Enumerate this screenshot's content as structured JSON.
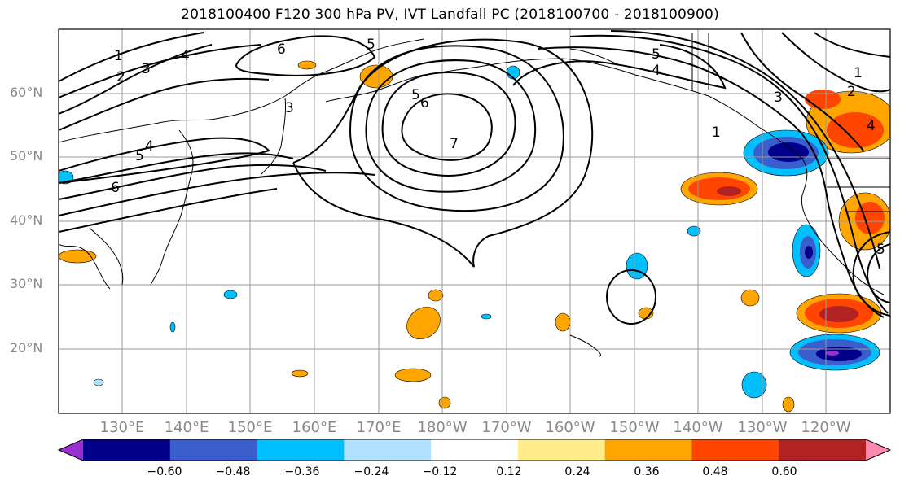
{
  "title": "2018100400 F120 300 hPa PV, IVT Landfall PC (2018100700 - 2018100900)",
  "lat_labels": [
    "60°N",
    "50°N",
    "40°N",
    "30°N",
    "20°N"
  ],
  "lon_labels": [
    "130°E",
    "140°E",
    "150°E",
    "160°E",
    "170°E",
    "180°W",
    "170°W",
    "160°W",
    "150°W",
    "140°W",
    "130°W",
    "120°W"
  ],
  "contour_labels": [
    "1",
    "2",
    "3",
    "4",
    "5",
    "6",
    "7"
  ],
  "colorbar": {
    "ticks": [
      "−0.60",
      "−0.48",
      "−0.36",
      "−0.24",
      "−0.12",
      "0.12",
      "0.24",
      "0.36",
      "0.48",
      "0.60"
    ],
    "colors": [
      "#9b30d0",
      "#00008b",
      "#3a5fcd",
      "#00bfff",
      "#b0e2ff",
      "#ffffff",
      "#ffec8b",
      "#ffa500",
      "#ff4500",
      "#b22222",
      "#ff88b0"
    ]
  }
}
